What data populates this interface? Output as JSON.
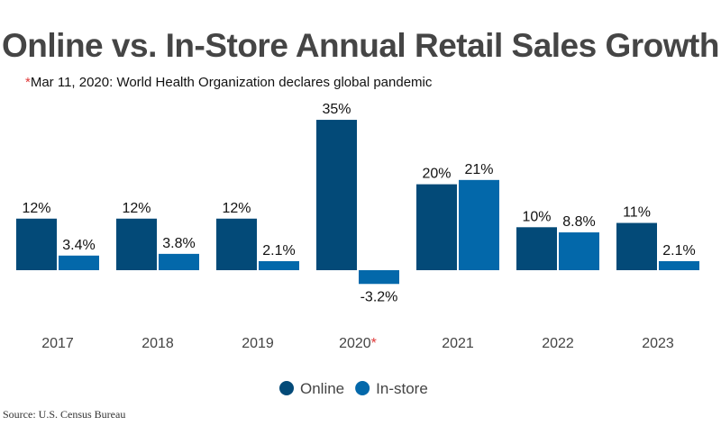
{
  "title": "Online vs. In-Store Annual Retail Sales Growth",
  "subtitle": {
    "marker": "*",
    "text": "Mar 11, 2020: World Health Organization declares global pandemic"
  },
  "source": "Source: U.S. Census Bureau",
  "chart_data": {
    "type": "bar",
    "title": "Online vs. In-Store Annual Retail Sales Growth",
    "categories": [
      "2017",
      "2018",
      "2019",
      "2020",
      "2021",
      "2022",
      "2023"
    ],
    "category_markers": {
      "2020": "*"
    },
    "series": [
      {
        "name": "Online",
        "color": "#034a78",
        "values": [
          12,
          12,
          12,
          35,
          20,
          10,
          11
        ],
        "labels": [
          "12%",
          "12%",
          "12%",
          "35%",
          "20%",
          "10%",
          "11%"
        ]
      },
      {
        "name": "In-store",
        "color": "#0368aa",
        "values": [
          3.4,
          3.8,
          2.1,
          -3.2,
          21,
          8.8,
          2.1
        ],
        "labels": [
          "3.4%",
          "3.8%",
          "2.1%",
          "-3.2%",
          "21%",
          "8.8%",
          "2.1%"
        ]
      }
    ],
    "unit": "%",
    "grid": false,
    "legend_placement": "bottom-center",
    "marker_color": "#e03a3a"
  }
}
